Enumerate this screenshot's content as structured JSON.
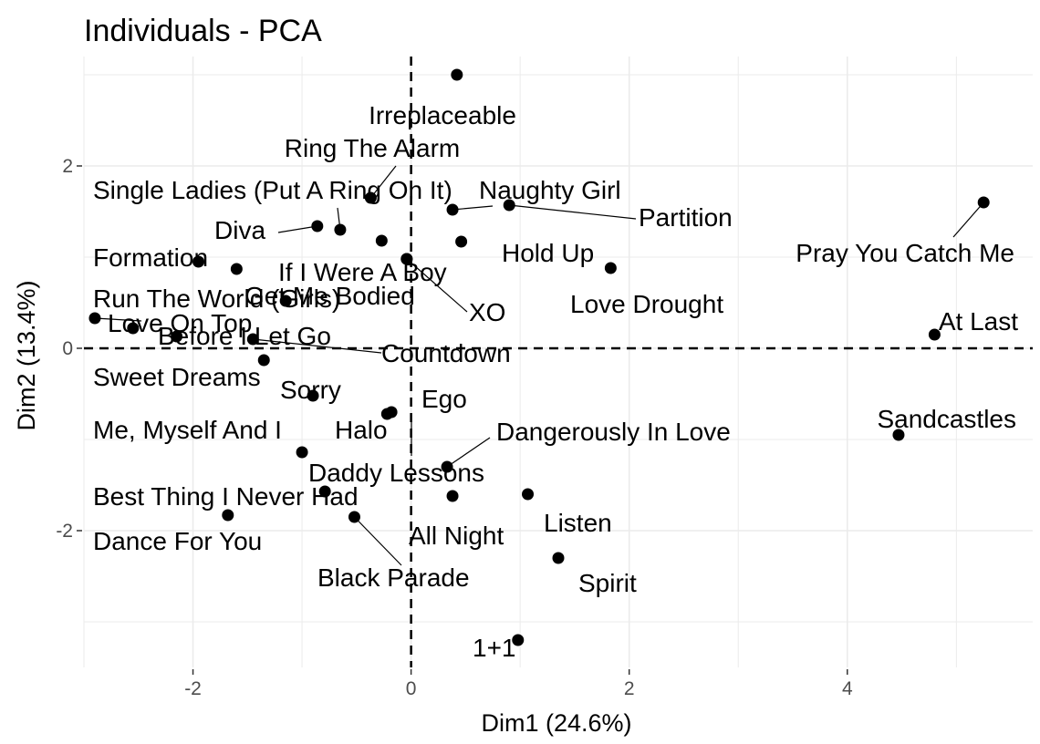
{
  "chart_data": {
    "type": "scatter",
    "title": "Individuals - PCA",
    "xlabel": "Dim1 (24.6%)",
    "ylabel": "Dim2 (13.4%)",
    "xlim": [
      -3.0,
      5.7
    ],
    "ylim": [
      -3.5,
      3.2
    ],
    "x_ticks": [
      -2,
      0,
      2,
      4
    ],
    "y_ticks": [
      -2,
      0,
      2
    ],
    "grid": true,
    "reference_lines": {
      "x": 0,
      "y": 0
    },
    "points": [
      {
        "label": "Irreplaceable",
        "x": 0.42,
        "y": 3.0
      },
      {
        "label": "Ring The Alarm",
        "x": -0.37,
        "y": 1.65
      },
      {
        "label": "Single Ladies (Put A Ring On It)",
        "x": -0.65,
        "y": 1.3
      },
      {
        "label": "Naughty Girl",
        "x": 0.38,
        "y": 1.52
      },
      {
        "label": "Partition",
        "x": 0.9,
        "y": 1.57
      },
      {
        "label": "Pray You Catch Me",
        "x": 5.25,
        "y": 1.6
      },
      {
        "label": "Diva",
        "x": -0.86,
        "y": 1.34
      },
      {
        "label": "Hold Up",
        "x": 0.46,
        "y": 1.17
      },
      {
        "label": "Formation",
        "x": -1.95,
        "y": 0.95
      },
      {
        "label": "Get Me Bodied",
        "x": -0.27,
        "y": 1.18
      },
      {
        "label": "If I Were A Boy",
        "x": -0.04,
        "y": 0.98
      },
      {
        "label": "Run The World (Girls)",
        "x": -1.6,
        "y": 0.87
      },
      {
        "label": "XO",
        "x": -0.04,
        "y": 0.98
      },
      {
        "label": "Love Drought",
        "x": 1.83,
        "y": 0.88
      },
      {
        "label": "Love On Top",
        "x": -2.9,
        "y": 0.33
      },
      {
        "label": "Before I Let Go",
        "x": -1.15,
        "y": 0.52
      },
      {
        "label": "Countdown",
        "x": -1.45,
        "y": 0.1
      },
      {
        "label": "At Last",
        "x": 4.8,
        "y": 0.15
      },
      {
        "label": "Sweet Dreams",
        "x": -2.55,
        "y": 0.22
      },
      {
        "label": "Sorry",
        "x": -1.35,
        "y": -0.13
      },
      {
        "label": "Ego",
        "x": -0.18,
        "y": -0.7
      },
      {
        "label": "Halo",
        "x": -0.22,
        "y": -0.72
      },
      {
        "label": "Me, Myself And I",
        "x": -2.15,
        "y": 0.13
      },
      {
        "label": "Sandcastles",
        "x": 4.47,
        "y": -0.95
      },
      {
        "label": "Dangerously In Love",
        "x": 0.33,
        "y": -1.3
      },
      {
        "label": "Daddy Lessons",
        "x": -0.9,
        "y": -0.52
      },
      {
        "label": "Best Thing I Never Had",
        "x": -1.0,
        "y": -1.14
      },
      {
        "label": "All Night",
        "x": 0.38,
        "y": -1.62
      },
      {
        "label": "Listen",
        "x": 1.07,
        "y": -1.6
      },
      {
        "label": "Dance For You",
        "x": -1.68,
        "y": -1.83
      },
      {
        "label": "Black Parade",
        "x": -0.52,
        "y": -1.85
      },
      {
        "label": "Spirit",
        "x": 1.35,
        "y": -2.3
      },
      {
        "label": "1+1",
        "x": 0.98,
        "y": -3.2
      },
      {
        "label": "",
        "x": -0.79,
        "y": -1.57
      }
    ]
  }
}
